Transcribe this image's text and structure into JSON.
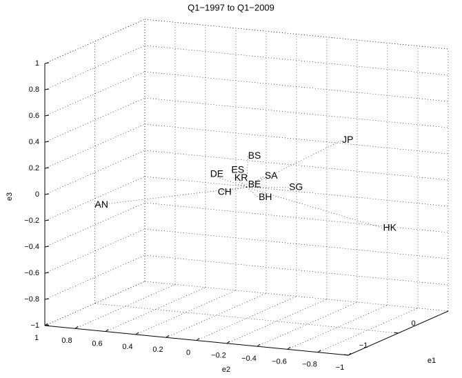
{
  "chart_data": {
    "type": "scatter3d",
    "title": "Q1−1997 to Q1−2009",
    "xlabel": "e1",
    "ylabel": "e2",
    "zlabel": "e3",
    "xlim": [
      -1,
      1
    ],
    "ylim": [
      -1,
      1
    ],
    "zlim": [
      -1,
      1
    ],
    "xticks": [
      {
        "value": -1,
        "label": "−1"
      },
      0
    ],
    "yticks": [
      1,
      0.8,
      0.6,
      0.4,
      0.2,
      0,
      {
        "value": -0.2,
        "label": "−0.2"
      },
      {
        "value": -0.4,
        "label": "−0.4"
      },
      {
        "value": -0.6,
        "label": "−0.6"
      },
      {
        "value": -0.8,
        "label": "−0.8"
      },
      {
        "value": -1,
        "label": "−1"
      }
    ],
    "zticks": [
      {
        "value": -1,
        "label": "−1"
      },
      {
        "value": -0.8,
        "label": "−0.8"
      },
      {
        "value": -0.6,
        "label": "−0.6"
      },
      {
        "value": -0.4,
        "label": "−0.4"
      },
      {
        "value": -0.2,
        "label": "−0.2"
      },
      0,
      0.2,
      0.4,
      0.6,
      0.8,
      1
    ],
    "grid": true,
    "points": [
      {
        "label": "JP",
        "color": "#ff0000",
        "x": 0,
        "y": -0.63,
        "z": 0.43
      },
      {
        "label": "HK",
        "color": "#ff0000",
        "x": 0,
        "y": -0.9,
        "z": -0.21
      },
      {
        "label": "AN",
        "color": "#ff0000",
        "x": 0,
        "y": 1,
        "z": -0.25
      },
      {
        "label": "BS",
        "color": "#ff0000",
        "x": 0,
        "y": -0.01,
        "z": 0.24
      },
      {
        "label": "SG",
        "color": "#ff0000",
        "x": 0,
        "y": -0.28,
        "z": 0.03
      },
      {
        "label": "BH",
        "color": "#ff0000",
        "x": 0,
        "y": -0.08,
        "z": -0.07
      },
      {
        "label": "KR",
        "color": "#ff0000",
        "x": 0,
        "y": 0.08,
        "z": 0.06
      },
      {
        "label": "SA",
        "color": "#ff0000",
        "x": 0,
        "y": -0.12,
        "z": 0.1
      },
      {
        "label": "DE",
        "color": "#0000ff",
        "x": 0,
        "y": 0.24,
        "z": 0.07
      },
      {
        "label": "CH",
        "color": "#0000ff",
        "x": 0,
        "y": 0.19,
        "z": -0.06
      },
      {
        "label": "ES",
        "color": "#0000ff",
        "x": 0,
        "y": 0.1,
        "z": 0.12
      },
      {
        "label": "BE",
        "color": "#0000ff",
        "x": 0,
        "y": -0.01,
        "z": 0.02
      }
    ]
  }
}
